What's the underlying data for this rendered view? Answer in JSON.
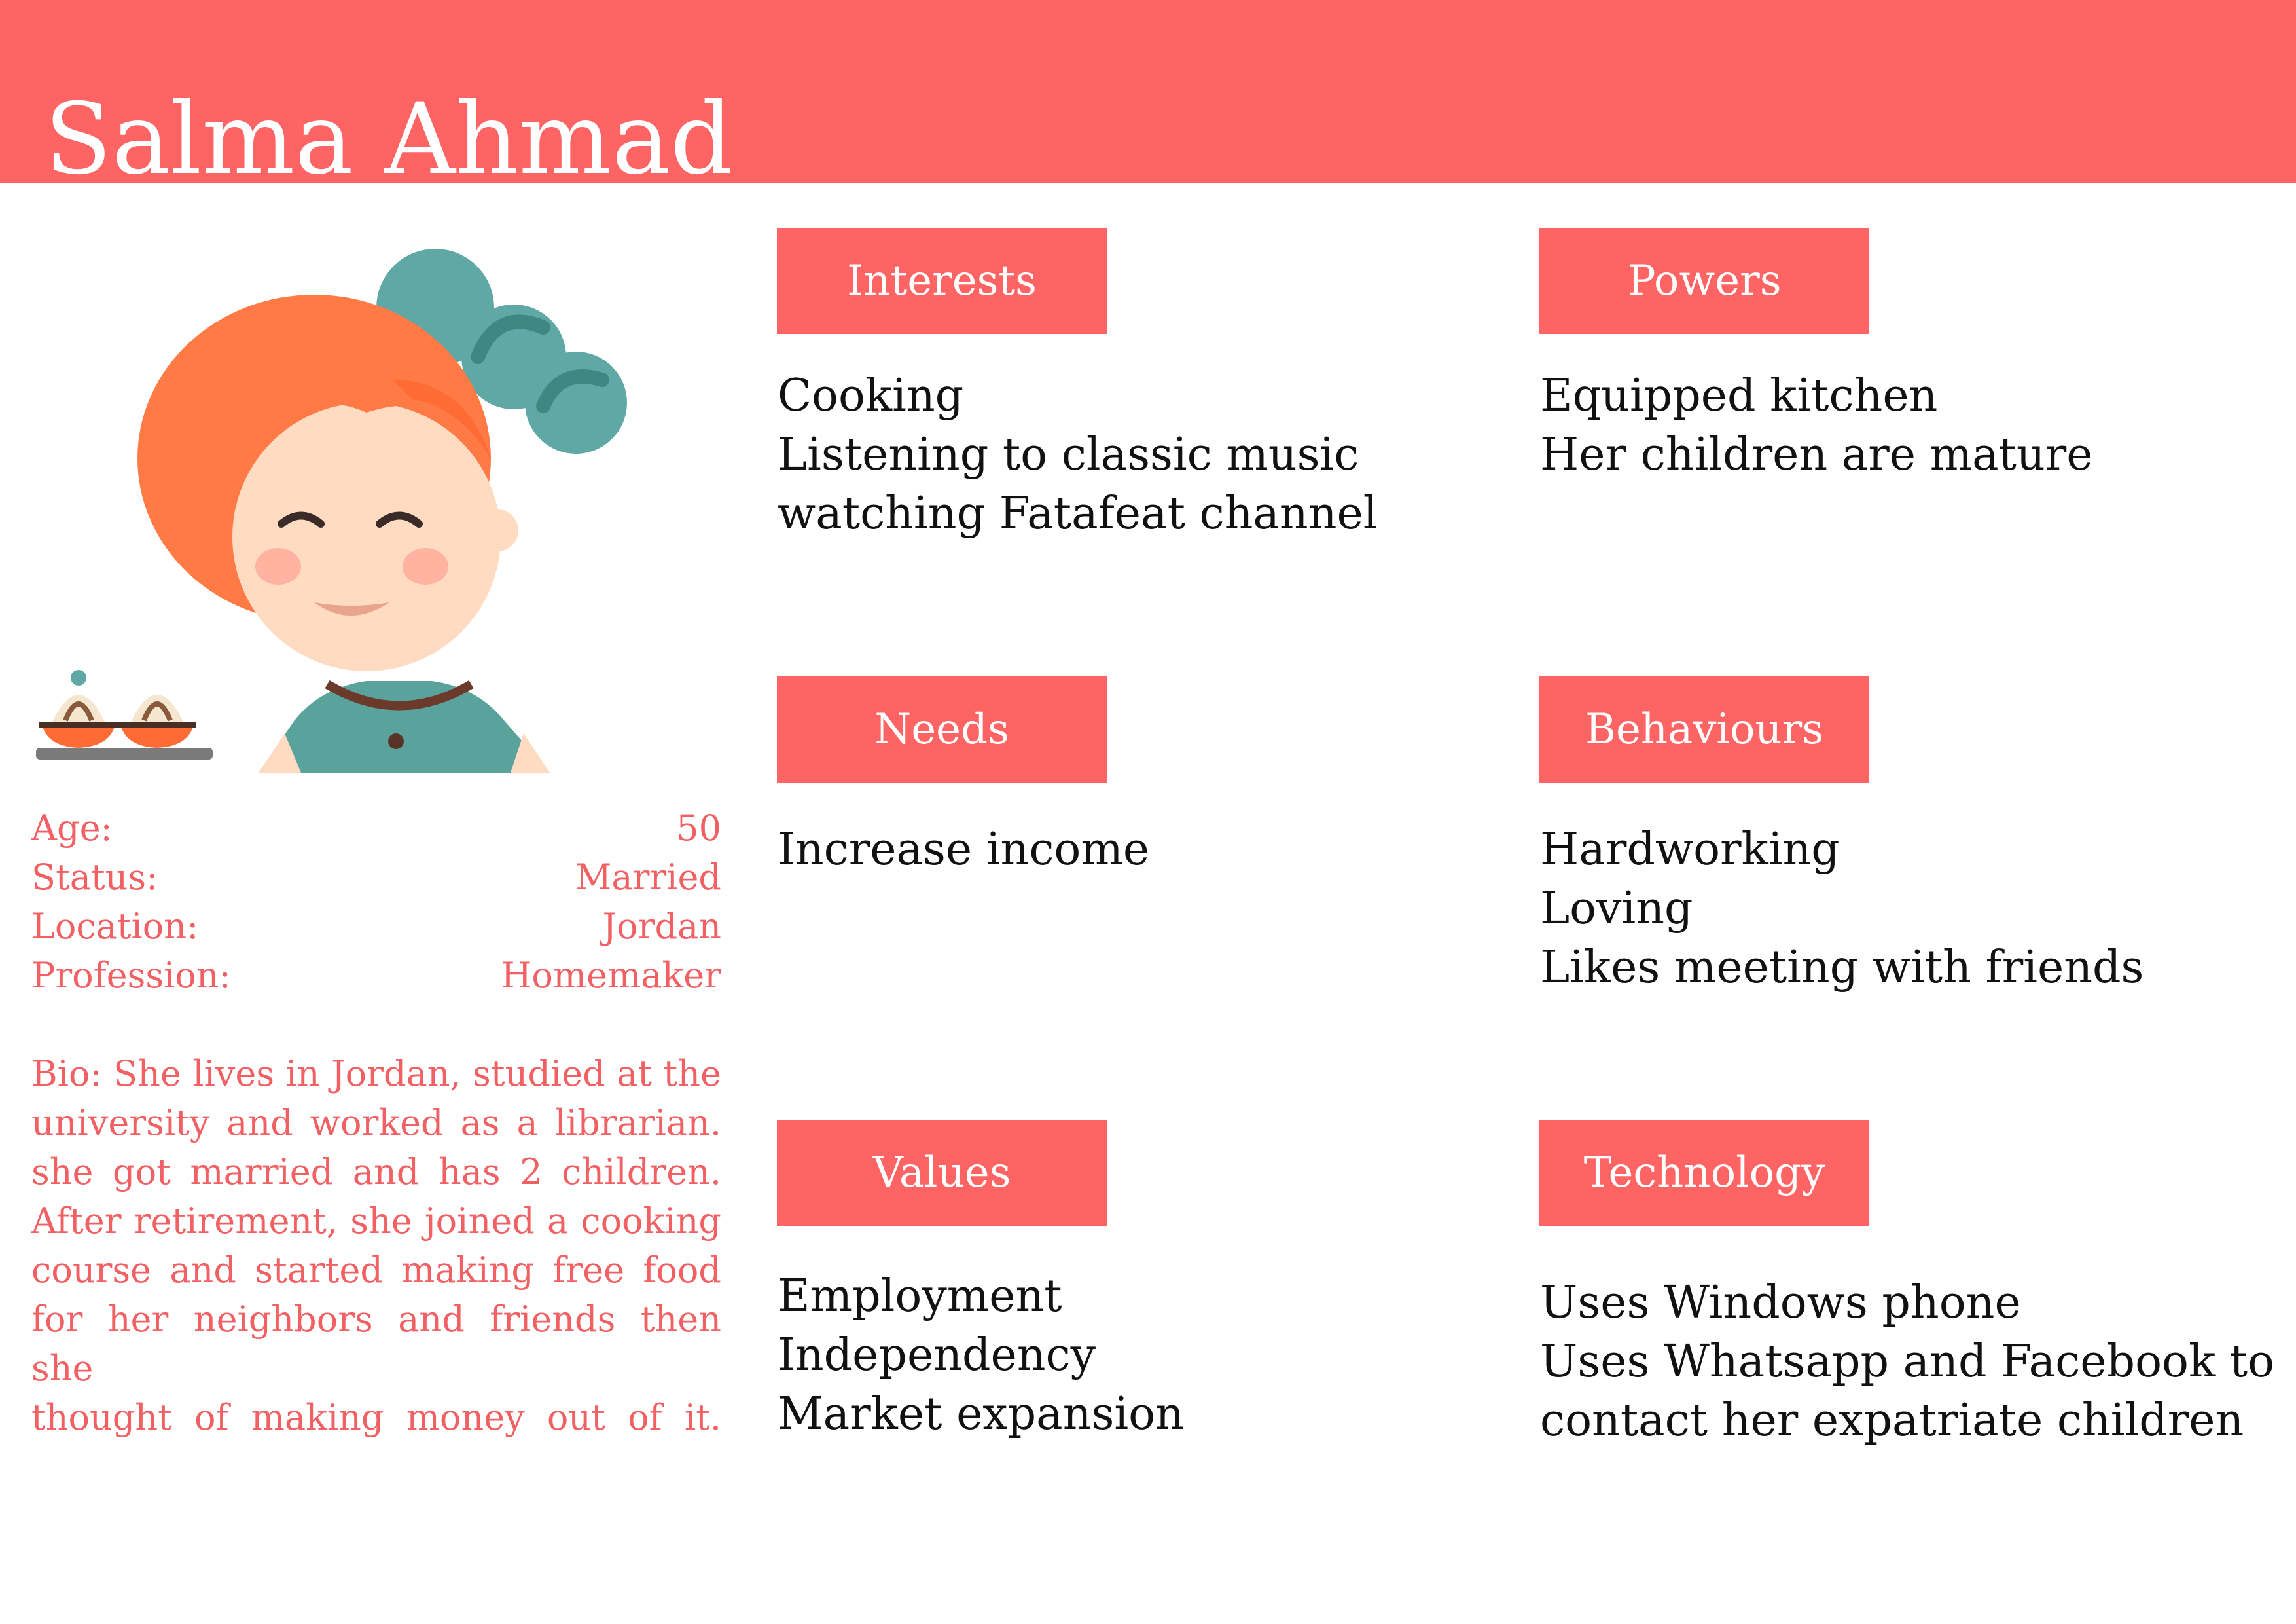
{
  "name": "Salma Ahmad",
  "profile": {
    "rows": [
      {
        "label": "Age:",
        "value": "50"
      },
      {
        "label": "Status:",
        "value": "Married"
      },
      {
        "label": "Location:",
        "value": "Jordan"
      },
      {
        "label": "Profession:",
        "value": "Homemaker"
      }
    ],
    "bio_lines": [
      "Bio: She lives in Jordan, studied at the",
      "university and worked as a librarian.",
      "she got married and has 2 children.",
      "After retirement, she joined a cooking",
      "course and started making free food",
      "for her neighbors and friends then she",
      "thought of making money out of it."
    ]
  },
  "sections": {
    "interests": {
      "title": "Interests",
      "items": [
        "Cooking",
        "Listening to classic music",
        "watching Fatafeat channel"
      ]
    },
    "powers": {
      "title": "Powers",
      "items": [
        "Equipped kitchen",
        "Her children are mature"
      ]
    },
    "needs": {
      "title": "Needs",
      "items": [
        "Increase income"
      ]
    },
    "behaviours": {
      "title": "Behaviours",
      "items": [
        "Hardworking",
        "Loving",
        "Likes meeting with friends"
      ]
    },
    "values": {
      "title": "Values",
      "items": [
        "Employment",
        "Independency",
        "Market expansion"
      ]
    },
    "technology": {
      "title": "Technology",
      "items": [
        "Uses Windows phone",
        "Uses Whatsapp and Facebook to",
        "contact her expatriate children"
      ]
    }
  },
  "colors": {
    "accent": "#FF6464",
    "text_accent": "#F16164",
    "hat": "#5FA8A5",
    "hair": "#FF7A45",
    "skin": "#FFDBC2",
    "shirt": "#5AA39C"
  }
}
